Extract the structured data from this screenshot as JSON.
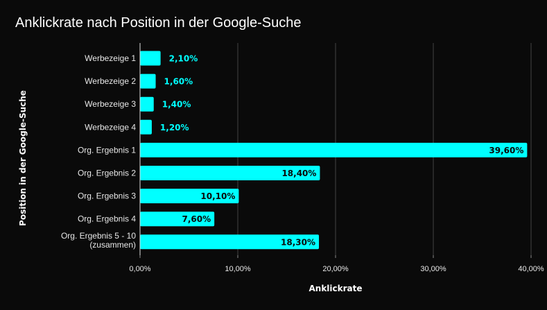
{
  "chart_data": {
    "type": "bar",
    "orientation": "horizontal",
    "title": "Anklickrate nach Position in der Google-Suche",
    "xlabel": "Anklickrate",
    "ylabel": "Position in der Google-Suche",
    "categories": [
      "Werbezeige 1",
      "Werbezeige 2",
      "Werbezeige 3",
      "Werbezeige 4",
      "Org. Ergebnis 1",
      "Org. Ergebnis 2",
      "Org. Ergebnis 3",
      "Org. Ergebnis 4",
      "Org. Ergebnis 5 - 10\n(zusammen)"
    ],
    "values": [
      2.1,
      1.6,
      1.4,
      1.2,
      39.6,
      18.4,
      10.1,
      7.6,
      18.3
    ],
    "data_labels": [
      "2,10%",
      "1,60%",
      "1,40%",
      "1,20%",
      "39,60%",
      "18,40%",
      "10,10%",
      "7,60%",
      "18,30%"
    ],
    "xlim": [
      0,
      40
    ],
    "xticks": [
      0,
      10,
      20,
      30,
      40
    ],
    "xtick_labels": [
      "0,00%",
      "10,00%",
      "20,00%",
      "30,00%",
      "40,00%"
    ],
    "grid": "vertical",
    "legend": "none",
    "colors": {
      "background": "#0a0a0a",
      "bar": "#00ffff",
      "label_inside": "#0a0a0a",
      "label_outside": "#00ffff",
      "grid": "#444444",
      "text": "#ffffff"
    }
  }
}
